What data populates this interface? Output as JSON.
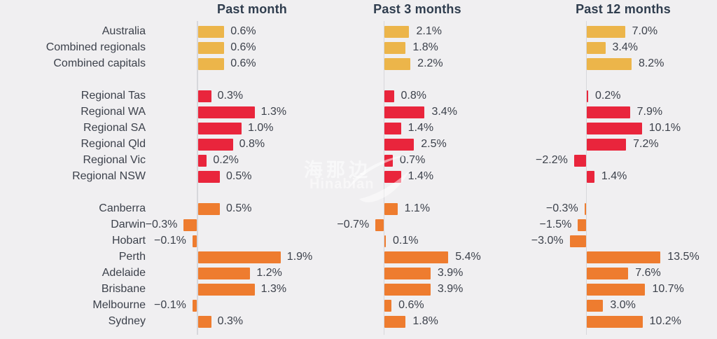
{
  "colors": {
    "background": "#f0eff1",
    "group_national": "#ecb54a",
    "group_regional": "#e9253c",
    "group_capital": "#ee7c2f",
    "text": "#3c414b",
    "header_text": "#2f3d4e",
    "axis_line": "#d7d7db"
  },
  "watermark": {
    "cjk_text": "海那边",
    "latin_text": "Hinabian",
    "logo": "swoosh-bird-icon"
  },
  "chart_data": {
    "type": "bar",
    "orientation": "horizontal",
    "unit": "%",
    "title": "",
    "legend": "none",
    "grid": "off",
    "value_labels": "outside-end",
    "categories": [
      "Australia",
      "Combined regionals",
      "Combined capitals",
      "Regional Tas",
      "Regional WA",
      "Regional SA",
      "Regional Qld",
      "Regional Vic",
      "Regional NSW",
      "Canberra",
      "Darwin",
      "Hobart",
      "Perth",
      "Adelaide",
      "Brisbane",
      "Melbourne",
      "Sydney"
    ],
    "groups": [
      {
        "name": "national",
        "color": "#ecb54a",
        "row_start": 0,
        "row_end": 2
      },
      {
        "name": "regional",
        "color": "#e9253c",
        "row_start": 3,
        "row_end": 8
      },
      {
        "name": "capital",
        "color": "#ee7c2f",
        "row_start": 9,
        "row_end": 16
      }
    ],
    "series": [
      {
        "name": "Past month",
        "values": [
          0.6,
          0.6,
          0.6,
          0.3,
          1.3,
          1.0,
          0.8,
          0.2,
          0.5,
          0.5,
          -0.3,
          -0.1,
          1.9,
          1.2,
          1.3,
          -0.1,
          0.3
        ]
      },
      {
        "name": "Past 3 months",
        "values": [
          2.1,
          1.8,
          2.2,
          0.8,
          3.4,
          1.4,
          2.5,
          0.7,
          1.4,
          1.1,
          -0.7,
          0.1,
          5.4,
          3.9,
          3.9,
          0.6,
          1.8
        ]
      },
      {
        "name": "Past 12 months",
        "values": [
          7.0,
          3.4,
          8.2,
          0.2,
          7.9,
          10.1,
          7.2,
          -2.2,
          1.4,
          -0.3,
          -1.5,
          -3.0,
          13.5,
          7.6,
          10.7,
          3.0,
          10.2
        ]
      }
    ]
  }
}
